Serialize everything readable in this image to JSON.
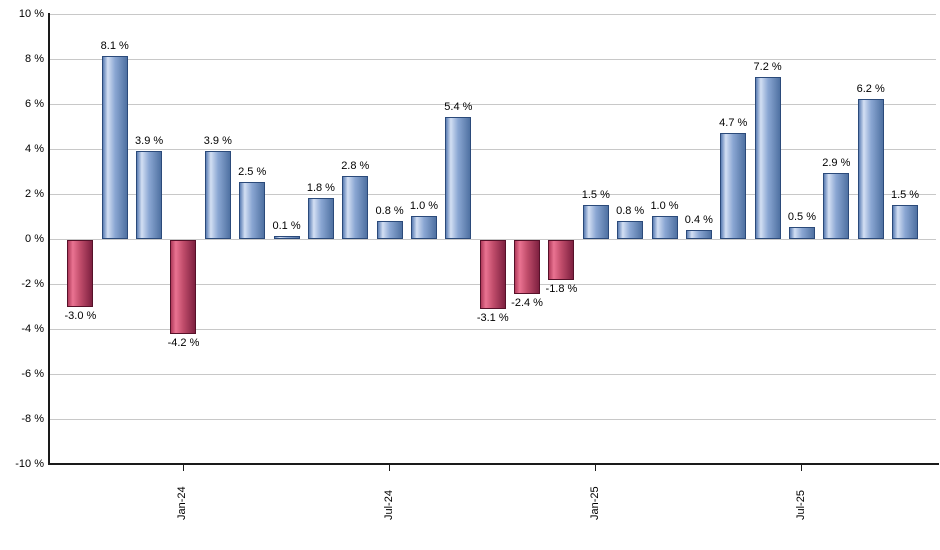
{
  "chart_data": {
    "type": "bar",
    "title": "",
    "values": [
      -3.0,
      8.1,
      3.9,
      -4.2,
      3.9,
      2.5,
      0.1,
      1.8,
      2.8,
      0.8,
      1.0,
      5.4,
      -3.1,
      -2.4,
      -1.8,
      1.5,
      0.8,
      1.0,
      0.4,
      4.7,
      7.2,
      0.5,
      2.9,
      6.2,
      1.5
    ],
    "bar_labels": [
      "-3.0 %",
      "8.1 %",
      "3.9 %",
      "-4.2 %",
      "3.9 %",
      "2.5 %",
      "0.1 %",
      "1.8 %",
      "2.8 %",
      "0.8 %",
      "1.0 %",
      "5.4 %",
      "-3.1 %",
      "-2.4 %",
      "-1.8 %",
      "1.5 %",
      "0.8 %",
      "1.0 %",
      "0.4 %",
      "4.7 %",
      "7.2 %",
      "0.5 %",
      "2.9 %",
      "6.2 %",
      "1.5 %"
    ],
    "x_ticks": [
      {
        "label": "Jan-24",
        "bar_index": 3
      },
      {
        "label": "Jul-24",
        "bar_index": 9
      },
      {
        "label": "Jan-25",
        "bar_index": 15
      },
      {
        "label": "Jul-25",
        "bar_index": 21
      }
    ],
    "y_ticks": [
      "10 %",
      "8 %",
      "6 %",
      "4 %",
      "2 %",
      "0 %",
      "-2 %",
      "-4 %",
      "-6 %",
      "-8 %",
      "-10 %"
    ],
    "ylim": [
      -10,
      10
    ],
    "y_step": 2,
    "grid": true,
    "legend": "none",
    "colors": {
      "positive": {
        "edge": "#5b7eb4",
        "light": "#d3dff3",
        "mid": "#8ba7d3",
        "dark": "#4f71a2",
        "border": "#2b4a7a"
      },
      "negative": {
        "edge": "#b03a5a",
        "light": "#ea7392",
        "mid": "#c24e6c",
        "dark": "#7e2040",
        "border": "#561129"
      },
      "gridline": "#c8c8c8",
      "axis": "#1a1a1a",
      "text": "#000000"
    }
  }
}
